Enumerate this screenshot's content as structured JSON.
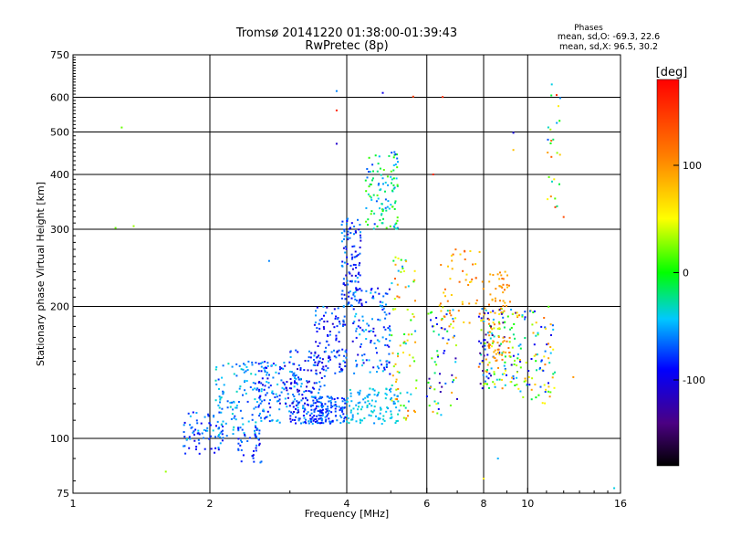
{
  "chart_data": {
    "type": "scatter",
    "title": "Tromsø 20141220 01:38:00-01:39:43",
    "subtitle": "RwPretec (8p)",
    "stats": {
      "heading": "Phases",
      "line1": "mean, sd,O: -69.3, 22.6",
      "line2": "mean, sd,X:  96.5, 30.2"
    },
    "xlabel": "Frequency [MHz]",
    "ylabel": "Stationary phase Virtual Height [km]",
    "xscale": "log",
    "yscale": "log",
    "xlim": [
      1,
      16
    ],
    "ylim": [
      75,
      750
    ],
    "xticks": [
      1,
      2,
      4,
      6,
      8,
      10,
      16
    ],
    "yticks": [
      75,
      100,
      200,
      300,
      400,
      500,
      600,
      750
    ],
    "xgrid": [
      2,
      4,
      6,
      8,
      10
    ],
    "ygrid": [
      100,
      200,
      300,
      400,
      500,
      600
    ],
    "colorbar": {
      "label": "[deg]",
      "range": [
        -180,
        180
      ],
      "ticks": [
        -100,
        0,
        100
      ],
      "tick_labels": [
        "-100",
        "0",
        "100"
      ]
    },
    "point_clusters": [
      {
        "f_range": [
          1.75,
          2.15
        ],
        "h_range": [
          92,
          115
        ],
        "phase_range": [
          -100,
          -40
        ],
        "count": 70
      },
      {
        "f_range": [
          2.05,
          2.55
        ],
        "h_range": [
          100,
          150
        ],
        "phase_range": [
          -80,
          -30
        ],
        "count": 110
      },
      {
        "f_range": [
          2.3,
          2.6
        ],
        "h_range": [
          88,
          108
        ],
        "phase_range": [
          -105,
          -55
        ],
        "count": 40
      },
      {
        "f_range": [
          2.55,
          3.2
        ],
        "h_range": [
          108,
          150
        ],
        "phase_range": [
          -110,
          -40
        ],
        "count": 150
      },
      {
        "f_range": [
          3.0,
          3.6
        ],
        "h_range": [
          108,
          160
        ],
        "phase_range": [
          -115,
          -50
        ],
        "count": 120
      },
      {
        "f_range": [
          3.2,
          4.0
        ],
        "h_range": [
          108,
          125
        ],
        "phase_range": [
          -95,
          -50
        ],
        "count": 140
      },
      {
        "f_range": [
          3.4,
          4.0
        ],
        "h_range": [
          140,
          200
        ],
        "phase_range": [
          -115,
          -50
        ],
        "count": 100
      },
      {
        "f_range": [
          3.9,
          4.3
        ],
        "h_range": [
          200,
          320
        ],
        "phase_range": [
          -110,
          -50
        ],
        "count": 110
      },
      {
        "f_range": [
          4.0,
          5.2
        ],
        "h_range": [
          108,
          130
        ],
        "phase_range": [
          -60,
          -30
        ],
        "count": 110
      },
      {
        "f_range": [
          4.1,
          5.0
        ],
        "h_range": [
          140,
          220
        ],
        "phase_range": [
          -110,
          -40
        ],
        "count": 120
      },
      {
        "f_range": [
          4.4,
          5.2
        ],
        "h_range": [
          300,
          450
        ],
        "phase_range": [
          -80,
          20
        ],
        "count": 110
      },
      {
        "f_range": [
          5.0,
          5.7
        ],
        "h_range": [
          110,
          260
        ],
        "phase_range": [
          -60,
          130
        ],
        "count": 80
      },
      {
        "f_range": [
          6.0,
          7.0
        ],
        "h_range": [
          110,
          200
        ],
        "phase_range": [
          -130,
          120
        ],
        "count": 70
      },
      {
        "f_range": [
          6.4,
          8.0
        ],
        "h_range": [
          180,
          270
        ],
        "phase_range": [
          60,
          130
        ],
        "count": 50
      },
      {
        "f_range": [
          7.8,
          9.5
        ],
        "h_range": [
          130,
          200
        ],
        "phase_range": [
          -150,
          120
        ],
        "count": 150
      },
      {
        "f_range": [
          8.2,
          9.2
        ],
        "h_range": [
          150,
          240
        ],
        "phase_range": [
          80,
          120
        ],
        "count": 70
      },
      {
        "f_range": [
          9.5,
          11.5
        ],
        "h_range": [
          120,
          200
        ],
        "phase_range": [
          -100,
          120
        ],
        "count": 90
      },
      {
        "f_range": [
          11.0,
          11.8
        ],
        "h_range": [
          330,
          650
        ],
        "phase_range": [
          -80,
          170
        ],
        "count": 25
      }
    ],
    "outlier_points": [
      {
        "f": 1.28,
        "h": 512,
        "phase": 20
      },
      {
        "f": 1.24,
        "h": 302,
        "phase": 20
      },
      {
        "f": 1.36,
        "h": 305,
        "phase": 30
      },
      {
        "f": 1.6,
        "h": 84,
        "phase": 30
      },
      {
        "f": 1.75,
        "h": 96,
        "phase": -60
      },
      {
        "f": 2.7,
        "h": 254,
        "phase": -60
      },
      {
        "f": 3.8,
        "h": 620,
        "phase": -60
      },
      {
        "f": 3.8,
        "h": 560,
        "phase": 160
      },
      {
        "f": 3.8,
        "h": 470,
        "phase": -110
      },
      {
        "f": 4.8,
        "h": 614,
        "phase": -100
      },
      {
        "f": 5.6,
        "h": 602,
        "phase": 150
      },
      {
        "f": 6.5,
        "h": 601,
        "phase": 160
      },
      {
        "f": 6.2,
        "h": 400,
        "phase": 160
      },
      {
        "f": 8.0,
        "h": 81,
        "phase": 60
      },
      {
        "f": 9.3,
        "h": 498,
        "phase": -100
      },
      {
        "f": 9.3,
        "h": 455,
        "phase": 80
      },
      {
        "f": 11.3,
        "h": 642,
        "phase": -40
      },
      {
        "f": 12.0,
        "h": 320,
        "phase": 140
      },
      {
        "f": 15.5,
        "h": 77,
        "phase": -40
      },
      {
        "f": 12.6,
        "h": 138,
        "phase": 100
      },
      {
        "f": 8.6,
        "h": 90,
        "phase": -50
      }
    ]
  }
}
